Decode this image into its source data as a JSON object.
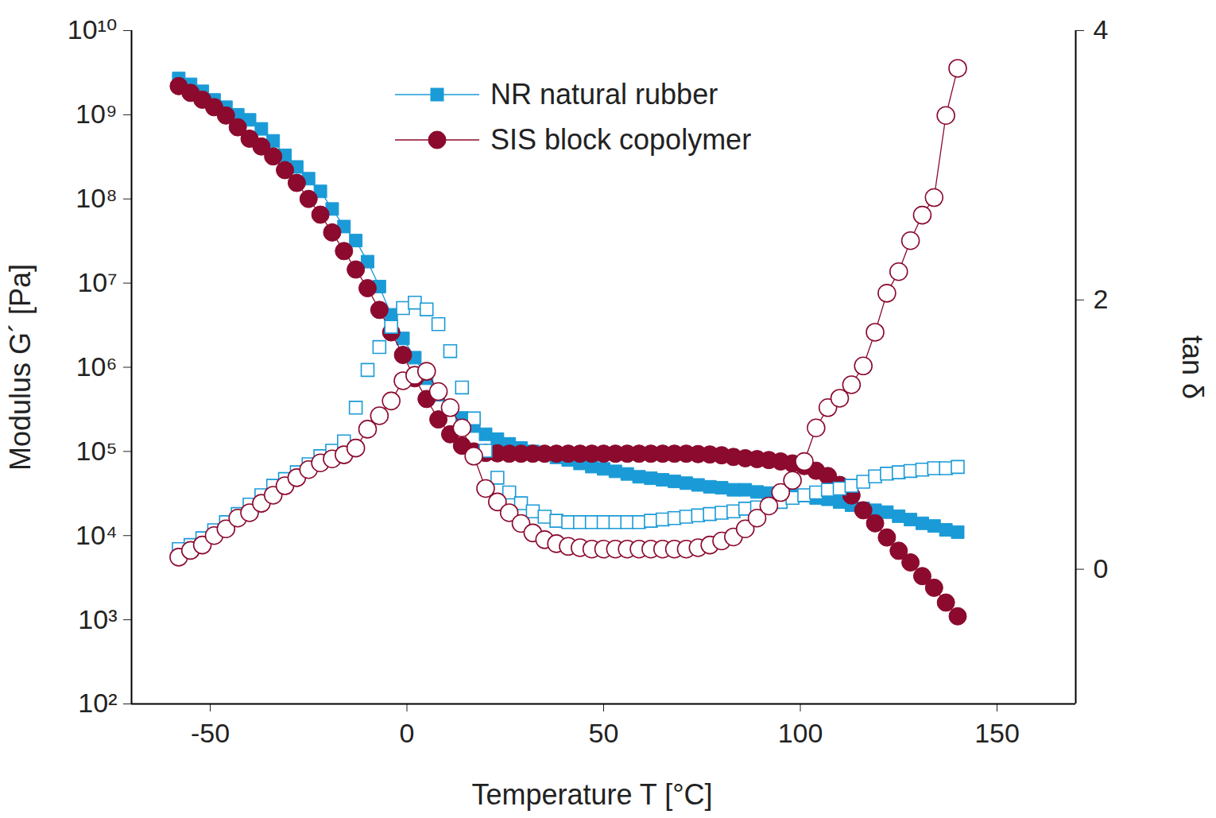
{
  "chart_data": {
    "type": "line",
    "xlabel": "Temperature T [°C]",
    "ylabel": "Modulus G´ [Pa]",
    "y2label": "tan δ",
    "log": "y",
    "grid": false,
    "legend": "top",
    "xlim": [
      -70,
      170
    ],
    "xticks": [
      -50,
      0,
      50,
      100,
      150
    ],
    "ylim": [
      100,
      10000000000
    ],
    "yticks": [
      {
        "value": 100,
        "label": "10²"
      },
      {
        "value": 1000,
        "label": "10³"
      },
      {
        "value": 10000,
        "label": "10⁴"
      },
      {
        "value": 100000,
        "label": "10⁵"
      },
      {
        "value": 1000000,
        "label": "10⁶"
      },
      {
        "value": 10000000,
        "label": "10⁷"
      },
      {
        "value": 100000000,
        "label": "10⁸"
      },
      {
        "value": 1000000000,
        "label": "10⁹"
      },
      {
        "value": 10000000000,
        "label": "10¹⁰"
      }
    ],
    "y2lim": [
      -1,
      4
    ],
    "y2ticks": [
      0,
      2,
      4
    ],
    "x": [
      -58,
      -55,
      -52,
      -49,
      -46,
      -43,
      -40,
      -37,
      -34,
      -31,
      -28,
      -25,
      -22,
      -19,
      -16,
      -13,
      -10,
      -7,
      -4,
      -1,
      2,
      5,
      8,
      11,
      14,
      17,
      20,
      23,
      26,
      29,
      32,
      35,
      38,
      41,
      44,
      47,
      50,
      53,
      56,
      59,
      62,
      65,
      68,
      71,
      74,
      77,
      80,
      83,
      86,
      89,
      92,
      95,
      98,
      101,
      104,
      107,
      110,
      113,
      116,
      119,
      122,
      125,
      128,
      131,
      134,
      137,
      140
    ],
    "series": [
      {
        "name": "NR natural rubber",
        "color": "#1a9bd7",
        "marker": "square",
        "line_style": "solid",
        "values": [
          2700000000.0,
          2300000000.0,
          1900000000.0,
          1500000000.0,
          1230000000.0,
          1000000000.0,
          870000000.0,
          680000000.0,
          490000000.0,
          330000000.0,
          240000000.0,
          174000000.0,
          123000000.0,
          76000000.0,
          47000000.0,
          32000000.0,
          18000000.0,
          9100000.0,
          4200000.0,
          2200000.0,
          1300000.0,
          740000.0,
          470000.0,
          320000.0,
          250000.0,
          200000.0,
          160000.0,
          140000.0,
          123000.0,
          110000.0,
          100000.0,
          93000.0,
          85000.0,
          79000.0,
          72000.0,
          66000.0,
          62000.0,
          58000.0,
          54000.0,
          50000.0,
          48000.0,
          46000.0,
          44000.0,
          42000.0,
          40000.0,
          38000.0,
          37000.0,
          35000.0,
          35000.0,
          33000.0,
          32000.0,
          32000.0,
          30000.0,
          30000.0,
          28000.0,
          27000.0,
          25000.0,
          23000.0,
          21000.0,
          20000.0,
          19000.0,
          17000.0,
          15500.0,
          14000.0,
          13000.0,
          11700.0,
          11000.0
        ]
      },
      {
        "name": "SIS block copolymer",
        "color": "#8b0a2e",
        "marker": "circle",
        "line_style": "solid",
        "values": [
          2190000000.0,
          1820000000.0,
          1510000000.0,
          1230000000.0,
          980000000.0,
          710000000.0,
          520000000.0,
          420000000.0,
          320000000.0,
          220000000.0,
          155000000.0,
          100000000.0,
          65000000.0,
          40000000.0,
          24000000.0,
          14500000.0,
          8700000.0,
          4800000.0,
          2600000.0,
          1400000.0,
          740000.0,
          420000.0,
          240000.0,
          160000.0,
          117000.0,
          100000.0,
          96000.0,
          95000.0,
          94000.0,
          94000.0,
          94000.0,
          94000.0,
          94000.0,
          94000.0,
          94000.0,
          94000.0,
          94000.0,
          94000.0,
          94000.0,
          94000.0,
          94000.0,
          94000.0,
          94000.0,
          94000.0,
          93000.0,
          92000.0,
          90000.0,
          86000.0,
          83000.0,
          81000.0,
          79000.0,
          76000.0,
          72000.0,
          67000.0,
          59000.0,
          51000.0,
          40000.0,
          30000.0,
          20000.0,
          14000.0,
          9500.0,
          6600.0,
          4800.0,
          3300.0,
          2400.0,
          1600.0,
          1100.0
        ]
      },
      {
        "name": "NR natural rubber",
        "color": "#1a9bd7",
        "marker": "open square",
        "line_style": "none",
        "axis": "y2",
        "values": [
          0.15,
          0.18,
          0.23,
          0.29,
          0.35,
          0.41,
          0.48,
          0.55,
          0.62,
          0.67,
          0.72,
          0.78,
          0.84,
          0.88,
          0.95,
          1.2,
          1.48,
          1.65,
          1.8,
          1.94,
          1.98,
          1.93,
          1.82,
          1.62,
          1.35,
          1.12,
          0.88,
          0.68,
          0.57,
          0.49,
          0.43,
          0.39,
          0.36,
          0.35,
          0.35,
          0.35,
          0.35,
          0.35,
          0.35,
          0.35,
          0.36,
          0.37,
          0.38,
          0.39,
          0.4,
          0.41,
          0.42,
          0.43,
          0.45,
          0.46,
          0.48,
          0.5,
          0.53,
          0.55,
          0.57,
          0.59,
          0.6,
          0.62,
          0.65,
          0.69,
          0.71,
          0.72,
          0.73,
          0.74,
          0.75,
          0.75,
          0.76
        ]
      },
      {
        "name": "SIS block copolymer",
        "color": "#8b0a2e",
        "marker": "open circle",
        "line_style": "solid",
        "axis": "y2",
        "values": [
          0.09,
          0.14,
          0.18,
          0.25,
          0.3,
          0.38,
          0.42,
          0.49,
          0.55,
          0.62,
          0.68,
          0.74,
          0.79,
          0.82,
          0.85,
          0.9,
          1.04,
          1.14,
          1.25,
          1.4,
          1.44,
          1.47,
          1.32,
          1.2,
          1.05,
          0.84,
          0.6,
          0.5,
          0.42,
          0.34,
          0.27,
          0.22,
          0.19,
          0.17,
          0.16,
          0.15,
          0.15,
          0.15,
          0.15,
          0.15,
          0.15,
          0.15,
          0.15,
          0.15,
          0.16,
          0.18,
          0.21,
          0.24,
          0.3,
          0.38,
          0.47,
          0.57,
          0.66,
          0.8,
          1.05,
          1.2,
          1.27,
          1.37,
          1.51,
          1.76,
          2.05,
          2.21,
          2.44,
          2.63,
          2.76,
          3.37,
          3.72
        ]
      }
    ]
  }
}
